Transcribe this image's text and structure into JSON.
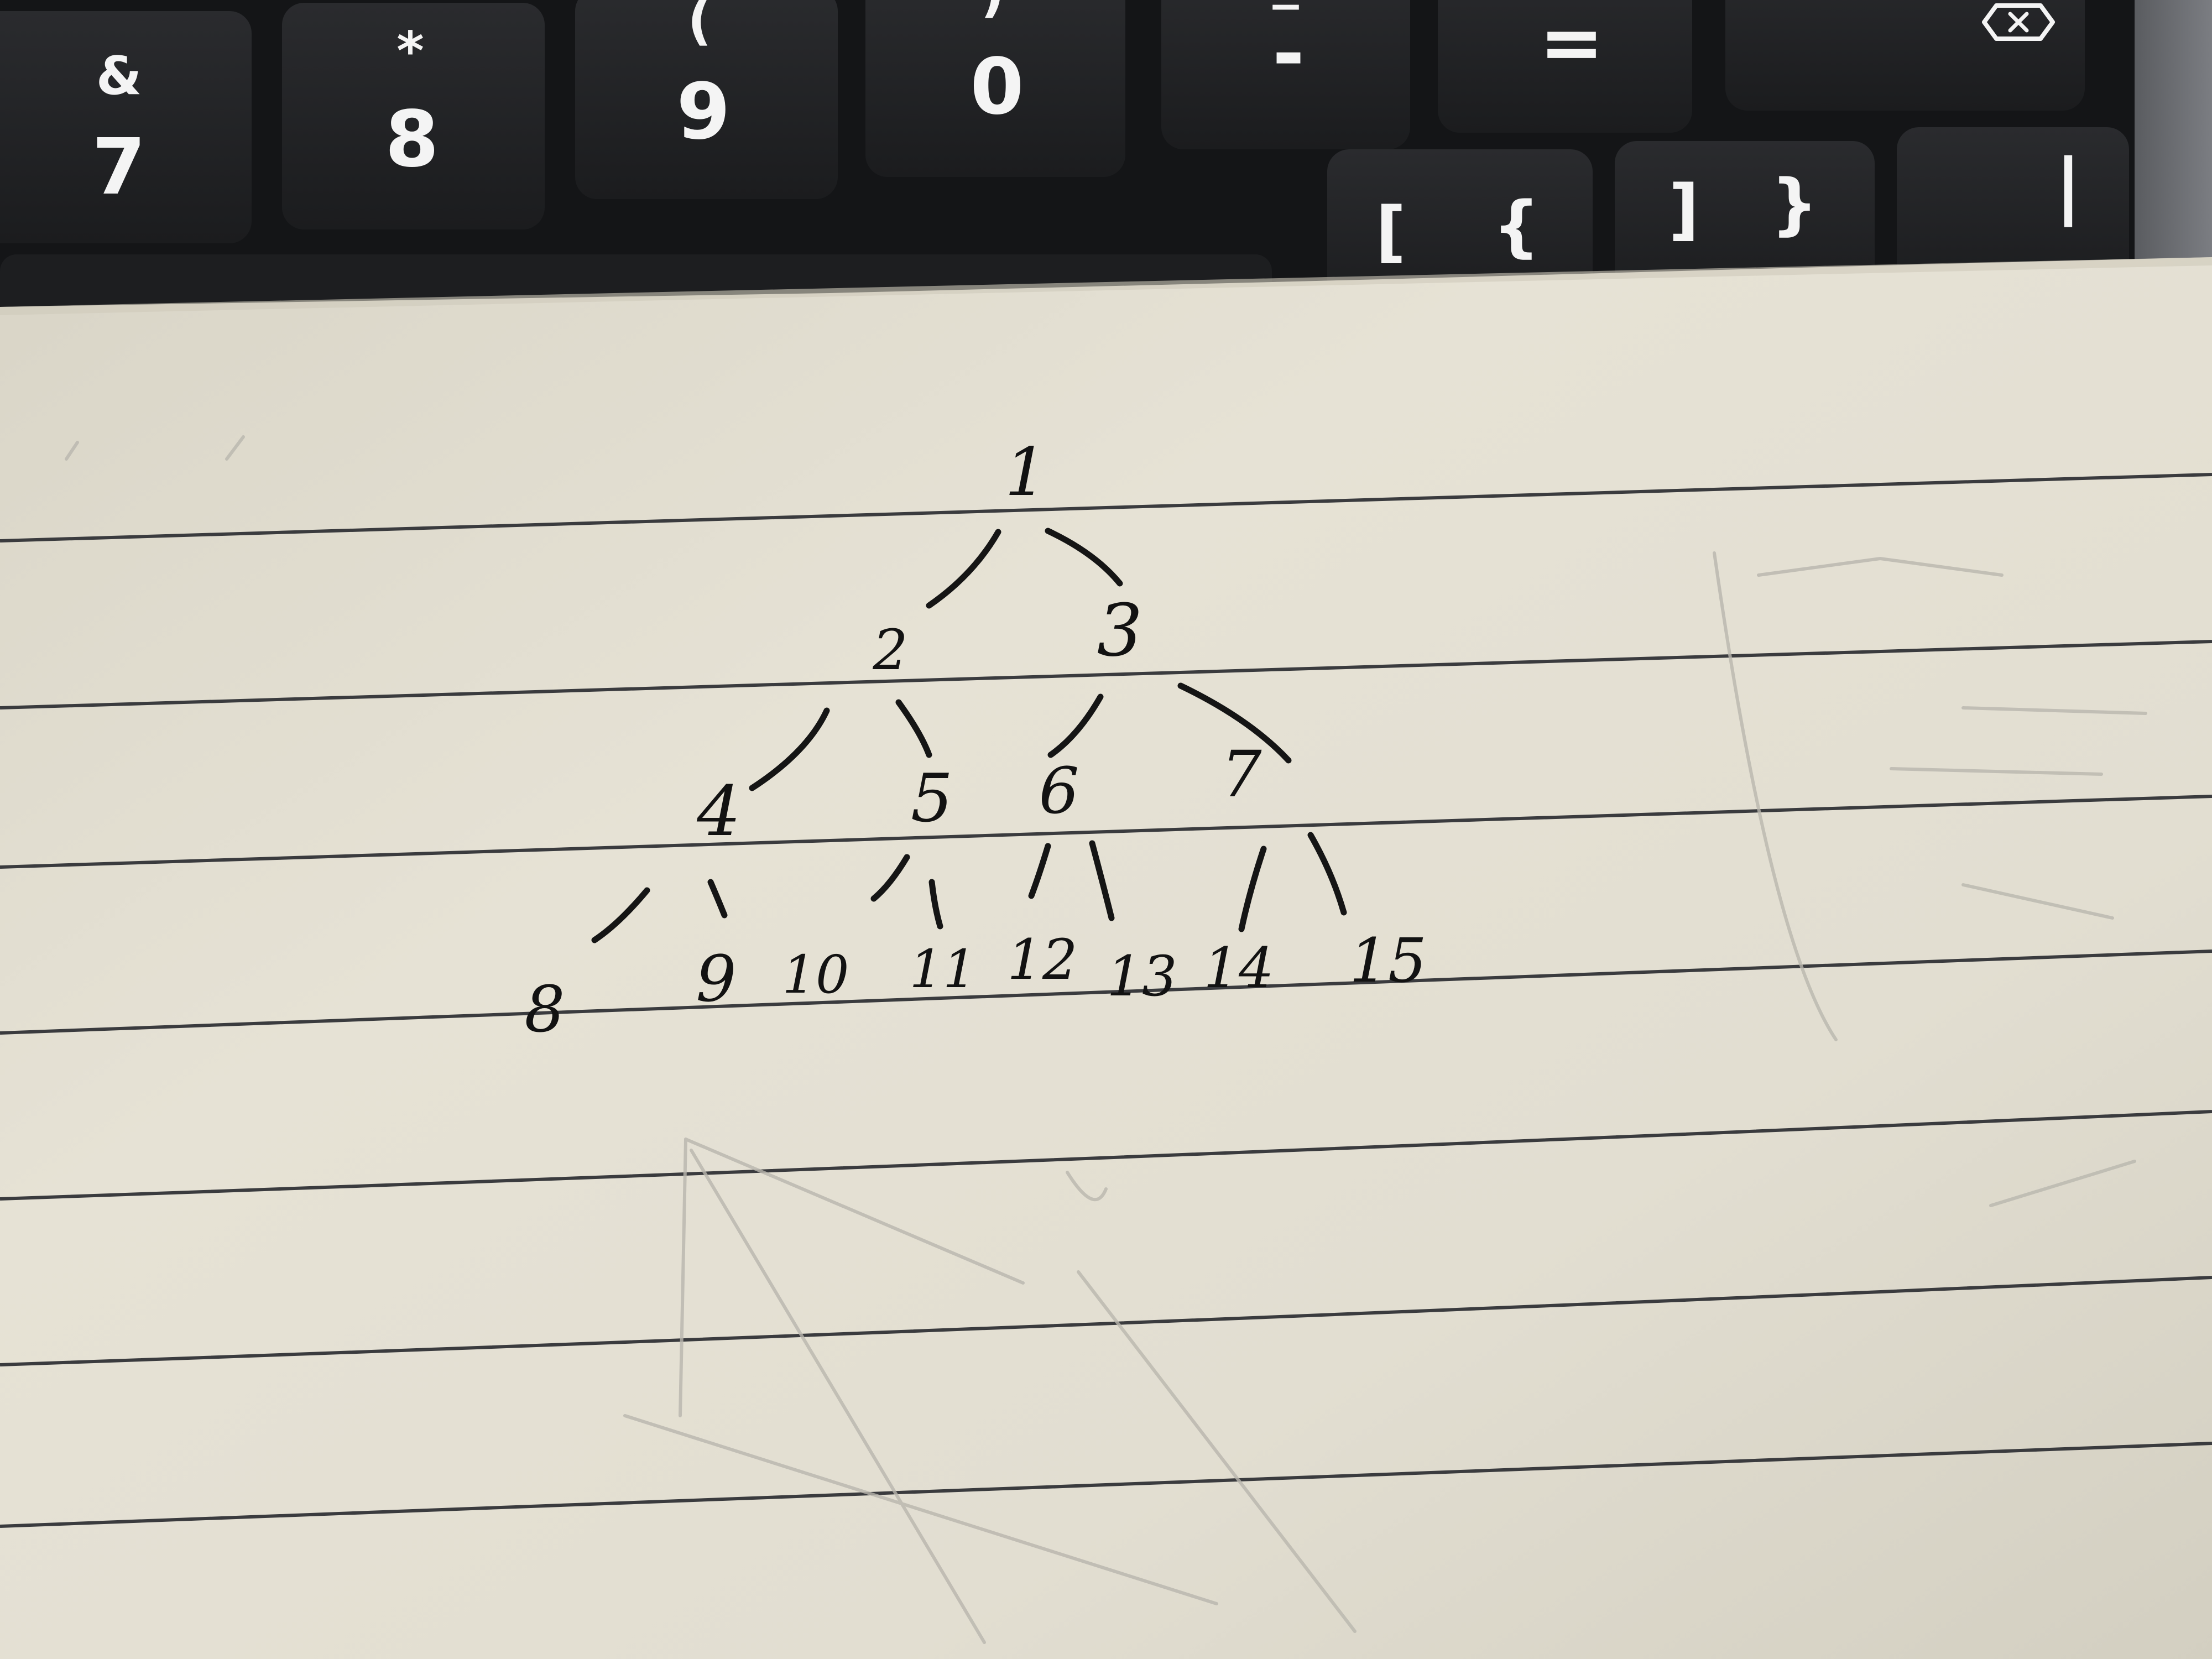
{
  "keyboard": {
    "number_keys": [
      {
        "top": "&",
        "main": "7"
      },
      {
        "top": "*",
        "main": "8"
      },
      {
        "top": "(",
        "main": "9"
      },
      {
        "top": ")",
        "main": "0"
      },
      {
        "top": "_",
        "main": "-"
      },
      {
        "top": "+",
        "main": "="
      }
    ],
    "delete_key": {
      "icon": "backspace-icon"
    },
    "bracket_keys": [
      {
        "top": "{",
        "main": "["
      },
      {
        "top": "}",
        "main": "]"
      }
    ],
    "pipe_key": {
      "main": "|"
    }
  },
  "notebook": {
    "paper_color": "#e4e0d3",
    "ink_color": "#151515",
    "tree_nodes": [
      "1",
      "2",
      "3",
      "4",
      "5",
      "6",
      "7",
      "8",
      "9",
      "10",
      "11",
      "12",
      "13",
      "14",
      "15"
    ]
  }
}
